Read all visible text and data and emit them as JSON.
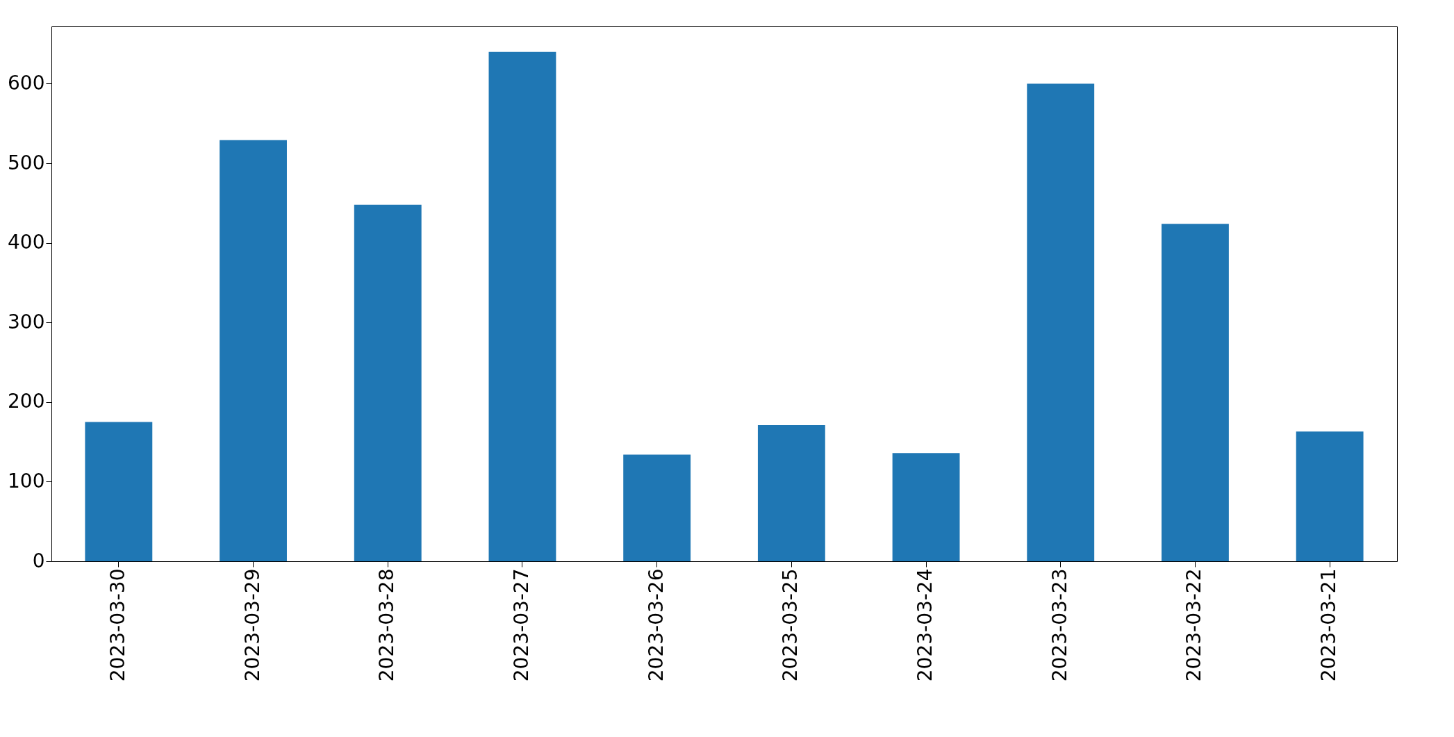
{
  "chart_data": {
    "type": "bar",
    "categories": [
      "2023-03-30",
      "2023-03-29",
      "2023-03-28",
      "2023-03-27",
      "2023-03-26",
      "2023-03-25",
      "2023-03-24",
      "2023-03-23",
      "2023-03-22",
      "2023-03-21"
    ],
    "values": [
      175,
      529,
      448,
      640,
      134,
      171,
      136,
      600,
      424,
      163
    ],
    "color": "#1f77b4",
    "ylim": [
      0,
      672
    ],
    "yticks": [
      0,
      100,
      200,
      300,
      400,
      500,
      600
    ],
    "grid": false
  }
}
